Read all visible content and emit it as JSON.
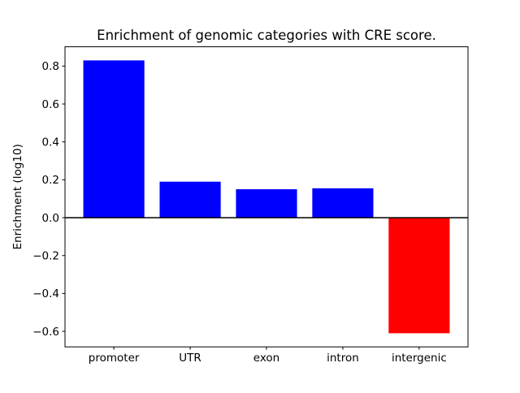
{
  "chart_data": {
    "type": "bar",
    "title": "Enrichment of genomic categories with CRE score.",
    "xlabel": "",
    "ylabel": "Enrichment (log10)",
    "categories": [
      "promoter",
      "UTR",
      "exon",
      "intron",
      "intergenic"
    ],
    "values": [
      0.83,
      0.19,
      0.15,
      0.155,
      -0.61
    ],
    "bar_colors": [
      "#0000ff",
      "#0000ff",
      "#0000ff",
      "#0000ff",
      "#ff0000"
    ],
    "positive_color": "#0000ff",
    "negative_color": "#ff0000",
    "baseline": 0,
    "bar_width": 0.8,
    "xlim": [
      -0.64,
      4.64
    ],
    "ylim": [
      -0.682,
      0.902
    ],
    "yticks": [
      -0.6,
      -0.4,
      -0.2,
      0.0,
      0.2,
      0.4,
      0.6,
      0.8
    ],
    "ytick_labels": [
      "−0.6",
      "−0.4",
      "−0.2",
      "0.0",
      "0.2",
      "0.4",
      "0.6",
      "0.8"
    ],
    "grid": false,
    "legend": null,
    "axes_facecolor": "#ffffff",
    "figure_facecolor": "#ffffff"
  }
}
